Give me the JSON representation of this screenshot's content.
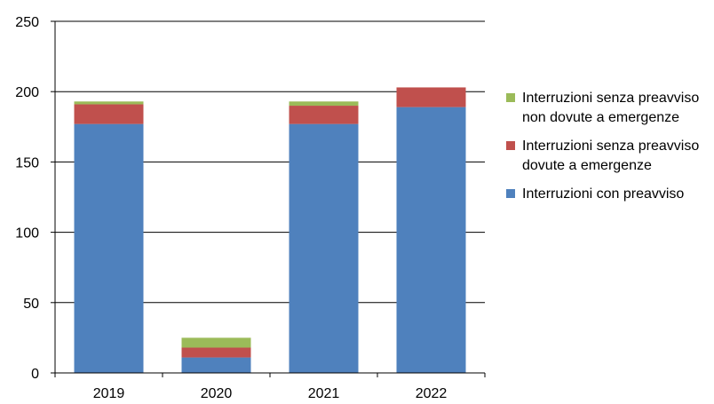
{
  "chart_data": {
    "type": "bar",
    "stacked": true,
    "categories": [
      "2019",
      "2020",
      "2021",
      "2022"
    ],
    "series": [
      {
        "name": "Interruzioni con preavviso",
        "color": "#4F81BD",
        "values": [
          177,
          11,
          177,
          189
        ]
      },
      {
        "name": "Interruzioni senza preavviso dovute a emergenze",
        "color": "#C0504D",
        "values": [
          14,
          7,
          13,
          14
        ]
      },
      {
        "name": "Interruzioni senza preavviso non dovute a emergenze",
        "color": "#9BBB59",
        "values": [
          2,
          7,
          3,
          0
        ]
      }
    ],
    "ylim": [
      0,
      250
    ],
    "yticks": [
      0,
      50,
      100,
      150,
      200,
      250
    ],
    "grid": true,
    "legend_position": "right"
  },
  "legend": {
    "items": [
      {
        "label": "Interruzioni senza preavviso non dovute a emergenze",
        "color": "#9BBB59"
      },
      {
        "label": "Interruzioni senza preavviso dovute a emergenze",
        "color": "#C0504D"
      },
      {
        "label": "Interruzioni con preavviso",
        "color": "#4F81BD"
      }
    ]
  }
}
